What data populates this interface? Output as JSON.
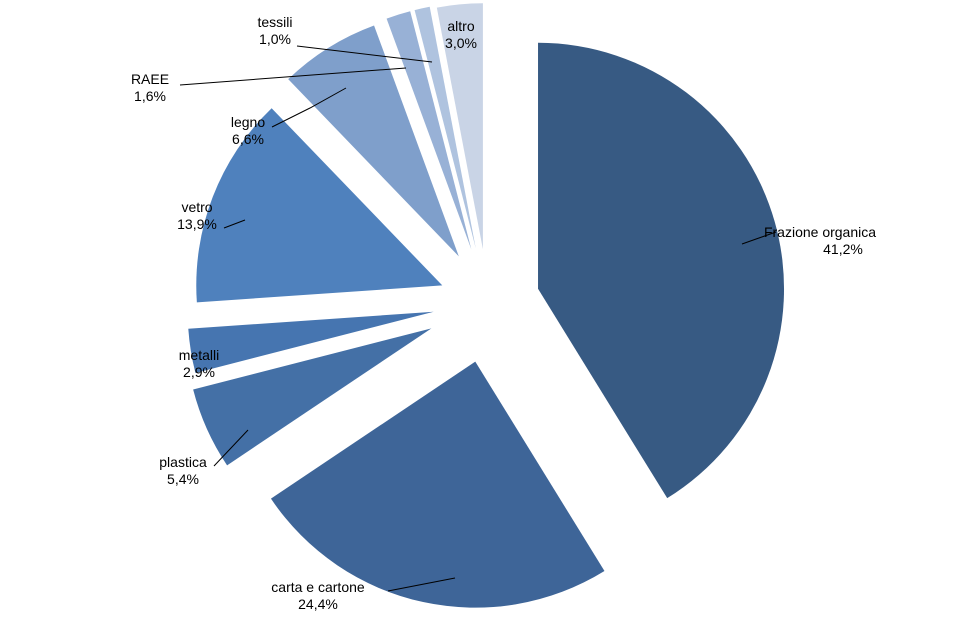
{
  "chart_data": {
    "type": "pie",
    "exploded": true,
    "legend": "none",
    "slices": [
      {
        "name": "Frazione organica",
        "value": 41.2,
        "label": "41,2%",
        "color": "#375a83"
      },
      {
        "name": "carta e cartone",
        "value": 24.4,
        "label": "24,4%",
        "color": "#3e6598"
      },
      {
        "name": "plastica",
        "value": 5.4,
        "label": "5,4%",
        "color": "#4470a6"
      },
      {
        "name": "metalli",
        "value": 2.9,
        "label": "2,9%",
        "color": "#4675b0"
      },
      {
        "name": "vetro",
        "value": 13.9,
        "label": "13,9%",
        "color": "#4f81bd"
      },
      {
        "name": "legno",
        "value": 6.6,
        "label": "6,6%",
        "color": "#7f9fcb"
      },
      {
        "name": "RAEE",
        "value": 1.6,
        "label": "1,6%",
        "color": "#98b1d6"
      },
      {
        "name": "tessili",
        "value": 1.0,
        "label": "1,0%",
        "color": "#afc3df"
      },
      {
        "name": "altro",
        "value": 3.0,
        "label": "3,0%",
        "color": "#c9d4e6"
      }
    ]
  }
}
